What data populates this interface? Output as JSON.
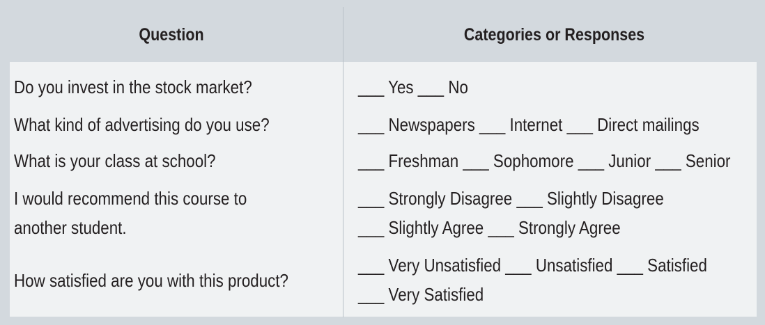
{
  "header": {
    "question_label": "Question",
    "responses_label": "Categories or Responses"
  },
  "rows": [
    {
      "question_lines": [
        "Do you invest in the stock market?"
      ],
      "response_lines": [
        "___ Yes ___ No"
      ]
    },
    {
      "question_lines": [
        "What kind of advertising do you use?"
      ],
      "response_lines": [
        "___ Newspapers ___ Internet ___ Direct mailings"
      ]
    },
    {
      "question_lines": [
        "What is your class at school?"
      ],
      "response_lines": [
        "___ Freshman ___ Sophomore ___ Junior ___ Senior"
      ]
    },
    {
      "question_lines": [
        "I would recommend this course to",
        "another student."
      ],
      "response_lines": [
        "___ Strongly Disagree ___ Slightly Disagree",
        "___ Slightly Agree ___ Strongly Agree"
      ]
    },
    {
      "question_lines": [
        "How satisfied are you with this product?"
      ],
      "response_lines": [
        "___ Very Unsatisfied ___ Unsatisfied ___ Satisfied",
        "___ Very Satisfied"
      ]
    }
  ]
}
